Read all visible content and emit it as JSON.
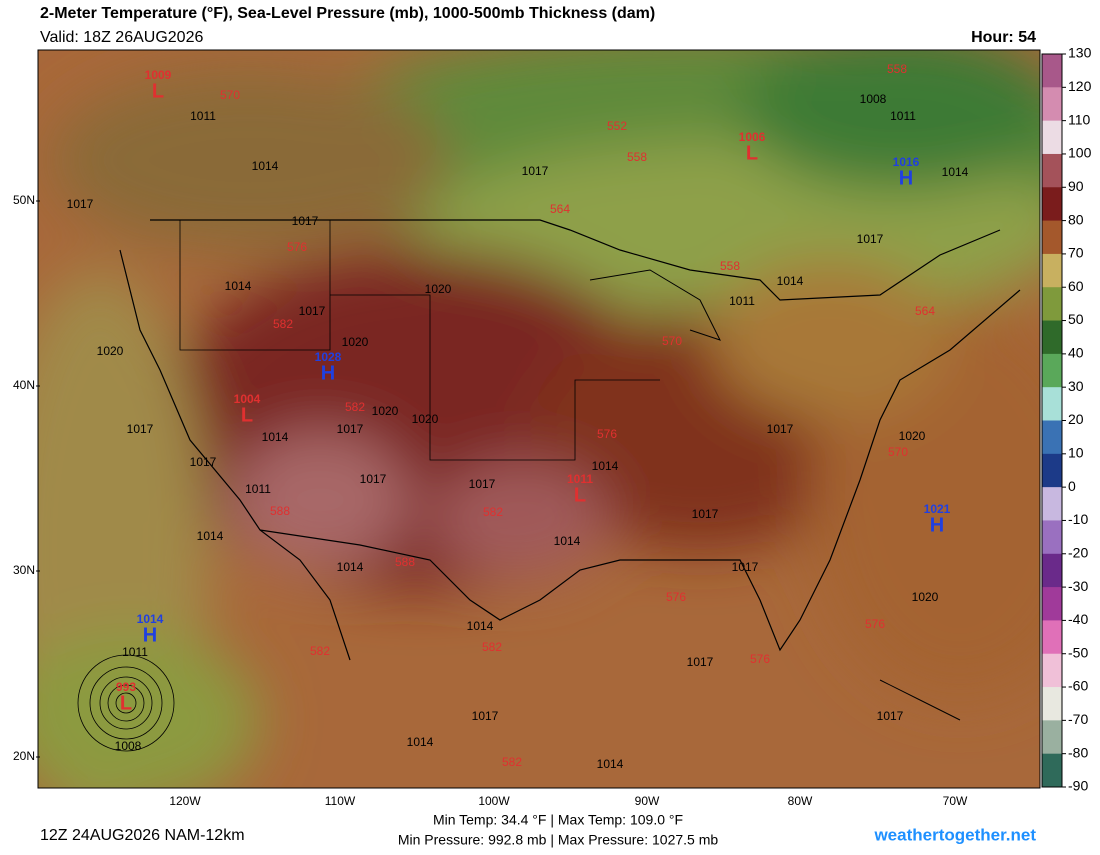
{
  "header": {
    "title": "2-Meter Temperature (°F), Sea-Level Pressure (mb), 1000-500mb Thickness (dam)",
    "valid": "Valid: 18Z 26AUG2026",
    "hour": "Hour: 54"
  },
  "colorbar": {
    "ticks": [
      130,
      120,
      110,
      100,
      90,
      80,
      70,
      60,
      50,
      40,
      30,
      20,
      10,
      0,
      -10,
      -20,
      -30,
      -40,
      -50,
      -60,
      -70,
      -80,
      -90
    ],
    "colors": [
      "#a8588a",
      "#d48cb0",
      "#ecdce4",
      "#a4525a",
      "#7a1c1c",
      "#a4582c",
      "#c8b060",
      "#7f9a3c",
      "#2f6a2a",
      "#5aa85a",
      "#a8e0d8",
      "#3a72b4",
      "#1c3a88",
      "#c8b8e0",
      "#9a70c0",
      "#6a2a8a",
      "#a03a9a",
      "#e070b8",
      "#f0c0d8",
      "#e8e8e0",
      "#9ab0a0",
      "#2f6a5a",
      "#4ad0a0"
    ]
  },
  "map": {
    "lat_labels": [
      "50N",
      "40N",
      "30N",
      "20N"
    ],
    "lon_labels": [
      "120W",
      "110W",
      "100W",
      "90W",
      "80W",
      "70W"
    ],
    "centers": [
      {
        "type": "L",
        "pressure": 1009
      },
      {
        "type": "L",
        "pressure": 1006
      },
      {
        "type": "H",
        "pressure": 1016
      },
      {
        "type": "H",
        "pressure": 1028
      },
      {
        "type": "L",
        "pressure": 1004
      },
      {
        "type": "L",
        "pressure": 1011
      },
      {
        "type": "H",
        "pressure": 1021
      },
      {
        "type": "H",
        "pressure": 1014
      },
      {
        "type": "L",
        "pressure": 993
      }
    ],
    "isobar_labels": [
      1011,
      1014,
      1017,
      1017,
      1008,
      1011,
      1014,
      1017,
      1017,
      1014,
      1017,
      1020,
      1020,
      1020,
      1014,
      1011,
      1020,
      1020,
      1017,
      1014,
      1017,
      1017,
      1017,
      1017,
      1014,
      1017,
      1020,
      1011,
      1014,
      1014,
      1014,
      1014,
      1017,
      1017,
      1020,
      1011,
      1008,
      1017,
      1017,
      1017,
      1014,
      1014
    ],
    "thickness_labels": [
      570,
      558,
      552,
      558,
      564,
      576,
      558,
      582,
      564,
      570,
      582,
      576,
      570,
      588,
      582,
      588,
      582,
      582,
      576,
      576,
      576,
      582
    ]
  },
  "footer": {
    "run": "12Z 24AUG2026 NAM-12km",
    "temps": "Min Temp: 34.4 °F | Max Temp: 109.0 °F",
    "pressures": "Min Pressure: 992.8 mb | Max Pressure: 1027.5 mb",
    "site": "weathertogether.net"
  }
}
